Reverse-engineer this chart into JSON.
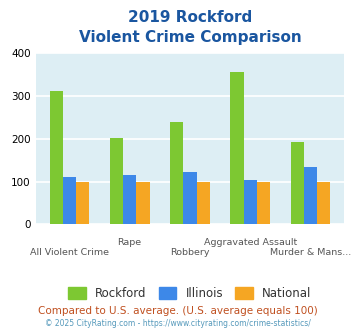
{
  "title_line1": "2019 Rockford",
  "title_line2": "Violent Crime Comparison",
  "categories": [
    "All Violent Crime",
    "Rape",
    "Robbery",
    "Aggravated Assault",
    "Murder & Mans..."
  ],
  "series": {
    "Rockford": [
      311,
      202,
      238,
      356,
      193
    ],
    "Illinois": [
      110,
      115,
      122,
      104,
      133
    ],
    "National": [
      100,
      100,
      100,
      100,
      100
    ]
  },
  "colors": {
    "Rockford": "#7dc832",
    "Illinois": "#3d88e8",
    "National": "#f5a623"
  },
  "ylim": [
    0,
    400
  ],
  "yticks": [
    0,
    100,
    200,
    300,
    400
  ],
  "background_color": "#ddeef4",
  "title_color": "#1a56a0",
  "footer_text": "Compared to U.S. average. (U.S. average equals 100)",
  "footer_color": "#c05020",
  "copyright_text": "© 2025 CityRating.com - https://www.cityrating.com/crime-statistics/",
  "copyright_color": "#5599bb",
  "bar_width": 0.22,
  "grid_color": "#ffffff"
}
